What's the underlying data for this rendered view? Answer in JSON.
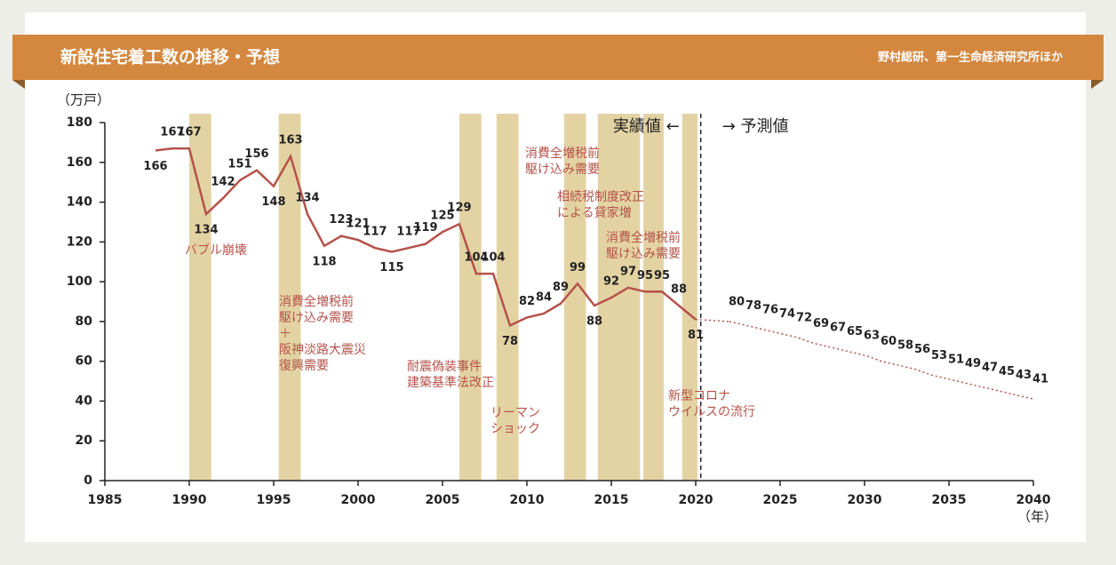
{
  "chart_data": {
    "type": "line",
    "title": "新設住宅着工数の推移・予想",
    "source": "野村総研、第一生命経済研究所ほか",
    "y_label": "（万戸）",
    "x_label": "（年）",
    "actual_label": "実績値 ←",
    "forecast_label": "→ 予測値",
    "split_x": 2020.3,
    "xlim": [
      1985,
      2040
    ],
    "xticks": [
      1985,
      1990,
      1995,
      2000,
      2005,
      2010,
      2015,
      2020,
      2025,
      2030,
      2035,
      2040
    ],
    "ylim": [
      0,
      180
    ],
    "yticks": [
      0,
      20,
      40,
      60,
      80,
      100,
      120,
      140,
      160,
      180
    ],
    "band_color": "#e3d3a3",
    "periods": [
      [
        1990,
        1991.3
      ],
      [
        1995.3,
        1996.6
      ],
      [
        2006,
        2007.3
      ],
      [
        2008.2,
        2009.5
      ],
      [
        2012.2,
        2013.5
      ],
      [
        2014.2,
        2016.7
      ],
      [
        2016.9,
        2018.1
      ],
      [
        2019.2,
        2020.1
      ]
    ],
    "series": [
      {
        "color": "#b5524a",
        "style": "solid",
        "x": [
          1988,
          1989,
          1990,
          1991,
          1992,
          1993,
          1994,
          1995,
          1996,
          1997,
          1998,
          1999,
          2000,
          2001,
          2002,
          2003,
          2004,
          2005,
          2006,
          2007,
          2008,
          2009,
          2010,
          2011,
          2012,
          2013,
          2014,
          2015,
          2016,
          2017,
          2018,
          2019,
          2020
        ],
        "values": [
          166,
          167,
          167,
          134,
          142,
          151,
          156,
          148,
          163,
          134,
          118,
          123,
          121,
          117,
          115,
          117,
          119,
          125,
          129,
          104,
          104,
          78,
          82,
          84,
          89,
          99,
          88,
          92,
          97,
          95,
          95,
          88,
          81
        ]
      },
      {
        "color": "#b5524a",
        "style": "dotted",
        "x": [
          2022,
          2023,
          2024,
          2025,
          2026,
          2027,
          2028,
          2029,
          2030,
          2031,
          2032,
          2033,
          2034,
          2035,
          2036,
          2037,
          2038,
          2039,
          2040
        ],
        "values": [
          80,
          78,
          76,
          74,
          72,
          69,
          67,
          65,
          63,
          60,
          58,
          56,
          53,
          51,
          49,
          47,
          45,
          43,
          41
        ]
      }
    ],
    "annotations": [
      {
        "lines": [
          "バブル崩壊"
        ]
      },
      {
        "lines": [
          "消費全増税前",
          "駆け込み需要",
          "＋",
          "阪神淡路大震災",
          "復興需要"
        ]
      },
      {
        "lines": [
          "耐震偽装事件",
          "建築基準法改正"
        ]
      },
      {
        "lines": [
          "リーマン",
          "ショック"
        ]
      },
      {
        "lines": [
          "消費全増税前",
          "駆け込み需要"
        ]
      },
      {
        "lines": [
          "相続税制度改正",
          "による貸家増"
        ]
      },
      {
        "lines": [
          "消費全増税前",
          "駆け込み需要"
        ]
      },
      {
        "lines": [
          "新型コロナ",
          "ウイルスの流行"
        ]
      }
    ]
  }
}
